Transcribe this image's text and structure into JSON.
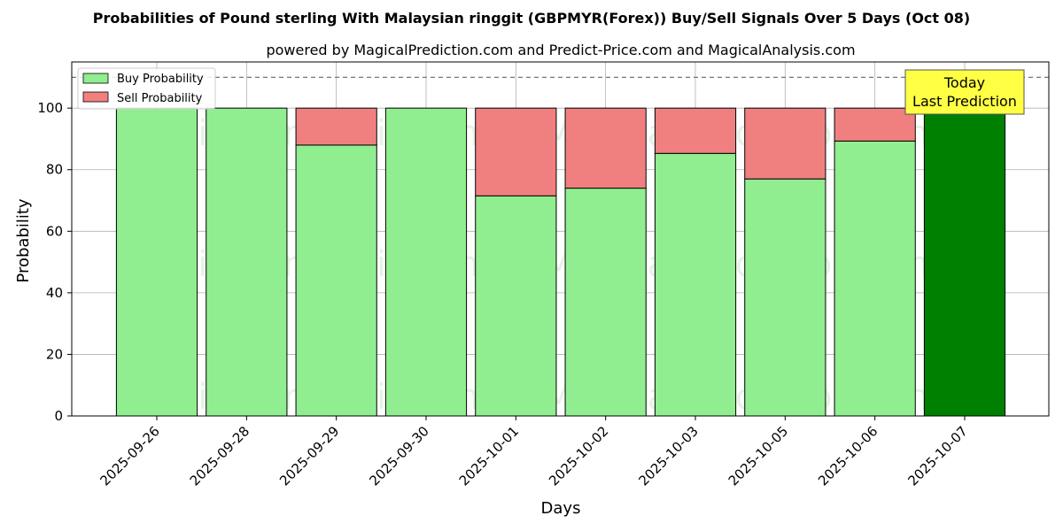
{
  "chart_data": {
    "type": "bar",
    "stacked": true,
    "title": "Probabilities of Pound sterling With Malaysian ringgit (GBPMYR(Forex)) Buy/Sell Signals Over 5 Days (Oct 08)",
    "subtitle": "powered by MagicalPrediction.com and Predict-Price.com and MagicalAnalysis.com",
    "xlabel": "Days",
    "ylabel": "Probability",
    "ylim": [
      0,
      115
    ],
    "yticks": [
      0,
      20,
      40,
      60,
      80,
      100
    ],
    "grid": true,
    "legend_position": "top-left",
    "reference_line": 110,
    "categories": [
      "2025-09-26",
      "2025-09-28",
      "2025-09-29",
      "2025-09-30",
      "2025-10-01",
      "2025-10-02",
      "2025-10-03",
      "2025-10-05",
      "2025-10-06",
      "2025-10-07"
    ],
    "series": [
      {
        "name": "Buy Probability",
        "color": "#90ee90",
        "values": [
          100,
          100,
          88,
          100,
          71.5,
          74,
          85.3,
          77,
          89.3,
          100
        ]
      },
      {
        "name": "Sell Probability",
        "color": "#f08080",
        "values": [
          0,
          0,
          12,
          0,
          28.5,
          26,
          14.7,
          23,
          10.7,
          0
        ]
      }
    ],
    "highlight": {
      "index": 9,
      "color": "#008000"
    },
    "annotation": {
      "lines": [
        "Today",
        "Last Prediction"
      ],
      "color": "#ffff44"
    },
    "watermarks": [
      "MagicalAnalysis.com",
      "MagicalPrediction.com"
    ]
  }
}
